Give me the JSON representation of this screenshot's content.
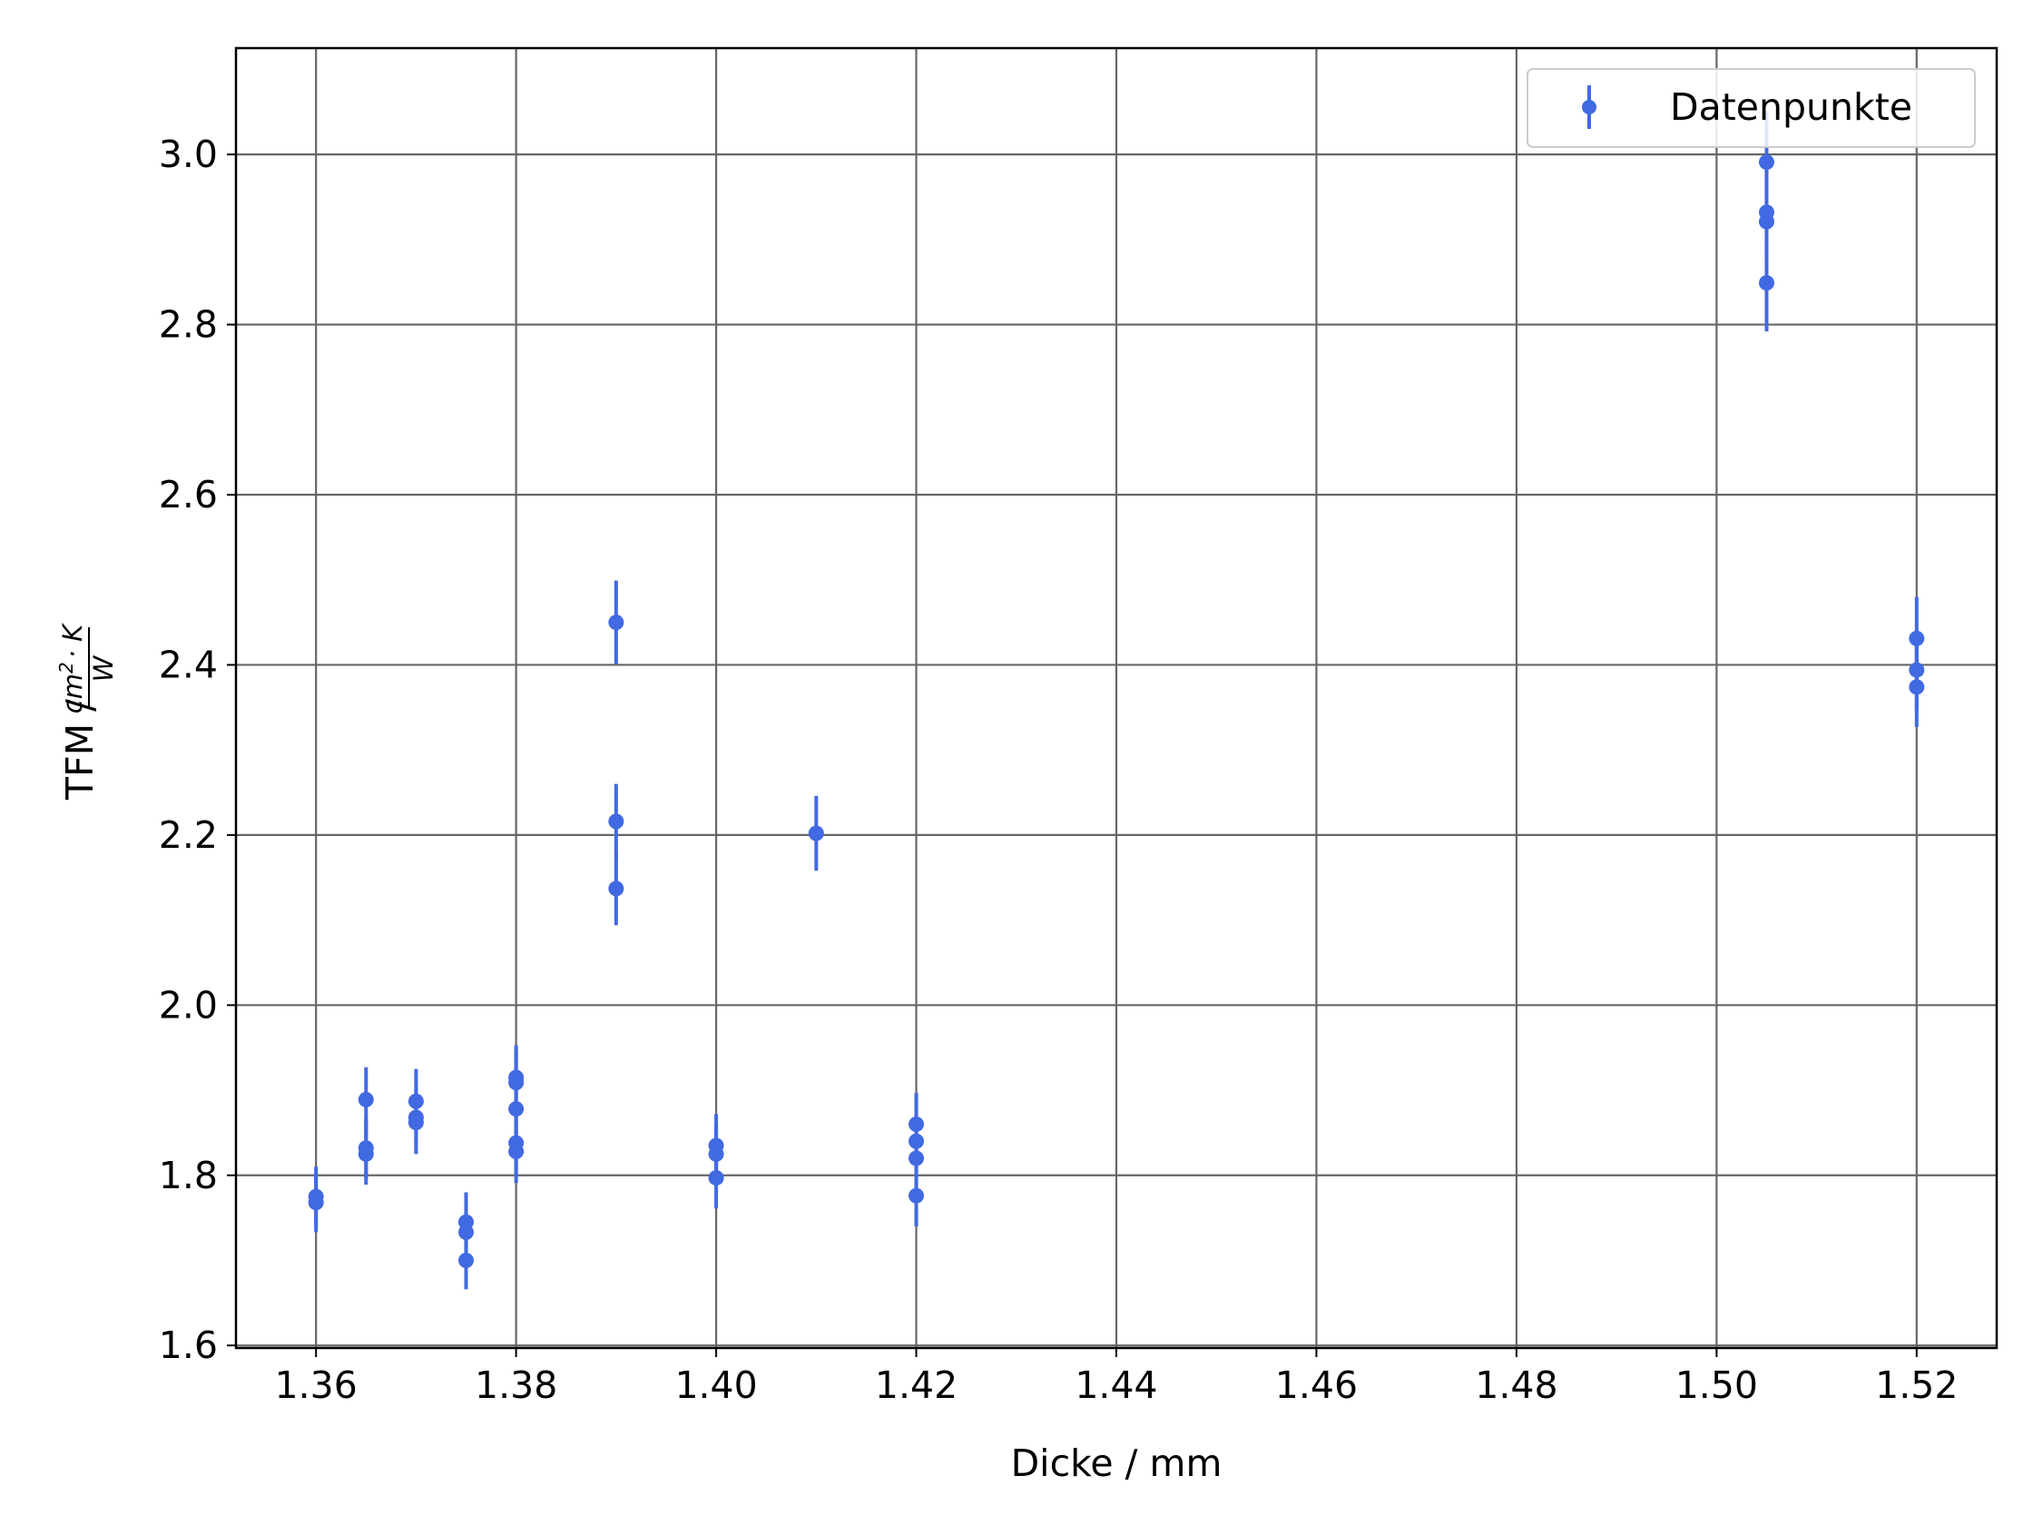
{
  "chart_data": {
    "type": "scatter",
    "title": "",
    "xlabel": "Dicke / mm",
    "ylabel": {
      "prefix": "TFM / ",
      "numerator_base": "cm",
      "numerator_exp": "2",
      "numerator_rest": "· K",
      "denominator": "W"
    },
    "xlim": [
      1.352,
      1.528
    ],
    "ylim": [
      1.597,
      3.125
    ],
    "xticks": [
      1.36,
      1.38,
      1.4,
      1.42,
      1.44,
      1.46,
      1.48,
      1.5,
      1.52
    ],
    "xtick_labels": [
      "1.36",
      "1.38",
      "1.40",
      "1.42",
      "1.44",
      "1.46",
      "1.48",
      "1.50",
      "1.52"
    ],
    "yticks": [
      1.6,
      1.8,
      2.0,
      2.2,
      2.4,
      2.6,
      2.8,
      3.0
    ],
    "ytick_labels": [
      "1.6",
      "1.8",
      "2.0",
      "2.2",
      "2.4",
      "2.6",
      "2.8",
      "3.0"
    ],
    "grid": true,
    "legend_position": "top-right",
    "colors": {
      "series": "#4169e1",
      "grid": "#666666"
    },
    "series": [
      {
        "name": "Datenpunkte",
        "points": [
          {
            "x": 1.36,
            "y": 1.775,
            "err": 0.035
          },
          {
            "x": 1.36,
            "y": 1.768,
            "err": 0.035
          },
          {
            "x": 1.365,
            "y": 1.889,
            "err": 0.038
          },
          {
            "x": 1.365,
            "y": 1.832,
            "err": 0.036
          },
          {
            "x": 1.365,
            "y": 1.825,
            "err": 0.036
          },
          {
            "x": 1.37,
            "y": 1.887,
            "err": 0.038
          },
          {
            "x": 1.37,
            "y": 1.868,
            "err": 0.037
          },
          {
            "x": 1.37,
            "y": 1.862,
            "err": 0.037
          },
          {
            "x": 1.375,
            "y": 1.745,
            "err": 0.035
          },
          {
            "x": 1.375,
            "y": 1.733,
            "err": 0.035
          },
          {
            "x": 1.375,
            "y": 1.7,
            "err": 0.034
          },
          {
            "x": 1.38,
            "y": 1.915,
            "err": 0.038
          },
          {
            "x": 1.38,
            "y": 1.909,
            "err": 0.038
          },
          {
            "x": 1.38,
            "y": 1.878,
            "err": 0.038
          },
          {
            "x": 1.38,
            "y": 1.838,
            "err": 0.037
          },
          {
            "x": 1.38,
            "y": 1.828,
            "err": 0.037
          },
          {
            "x": 1.39,
            "y": 2.45,
            "err": 0.049
          },
          {
            "x": 1.39,
            "y": 2.216,
            "err": 0.044
          },
          {
            "x": 1.39,
            "y": 2.137,
            "err": 0.043
          },
          {
            "x": 1.4,
            "y": 1.835,
            "err": 0.037
          },
          {
            "x": 1.4,
            "y": 1.825,
            "err": 0.037
          },
          {
            "x": 1.4,
            "y": 1.797,
            "err": 0.036
          },
          {
            "x": 1.41,
            "y": 2.202,
            "err": 0.044
          },
          {
            "x": 1.42,
            "y": 1.86,
            "err": 0.037
          },
          {
            "x": 1.42,
            "y": 1.84,
            "err": 0.037
          },
          {
            "x": 1.42,
            "y": 1.82,
            "err": 0.036
          },
          {
            "x": 1.42,
            "y": 1.776,
            "err": 0.036
          },
          {
            "x": 1.505,
            "y": 2.991,
            "err": 0.06
          },
          {
            "x": 1.505,
            "y": 2.932,
            "err": 0.059
          },
          {
            "x": 1.505,
            "y": 2.921,
            "err": 0.058
          },
          {
            "x": 1.505,
            "y": 2.849,
            "err": 0.057
          },
          {
            "x": 1.52,
            "y": 2.431,
            "err": 0.049
          },
          {
            "x": 1.52,
            "y": 2.394,
            "err": 0.048
          },
          {
            "x": 1.52,
            "y": 2.374,
            "err": 0.047
          }
        ]
      }
    ]
  }
}
